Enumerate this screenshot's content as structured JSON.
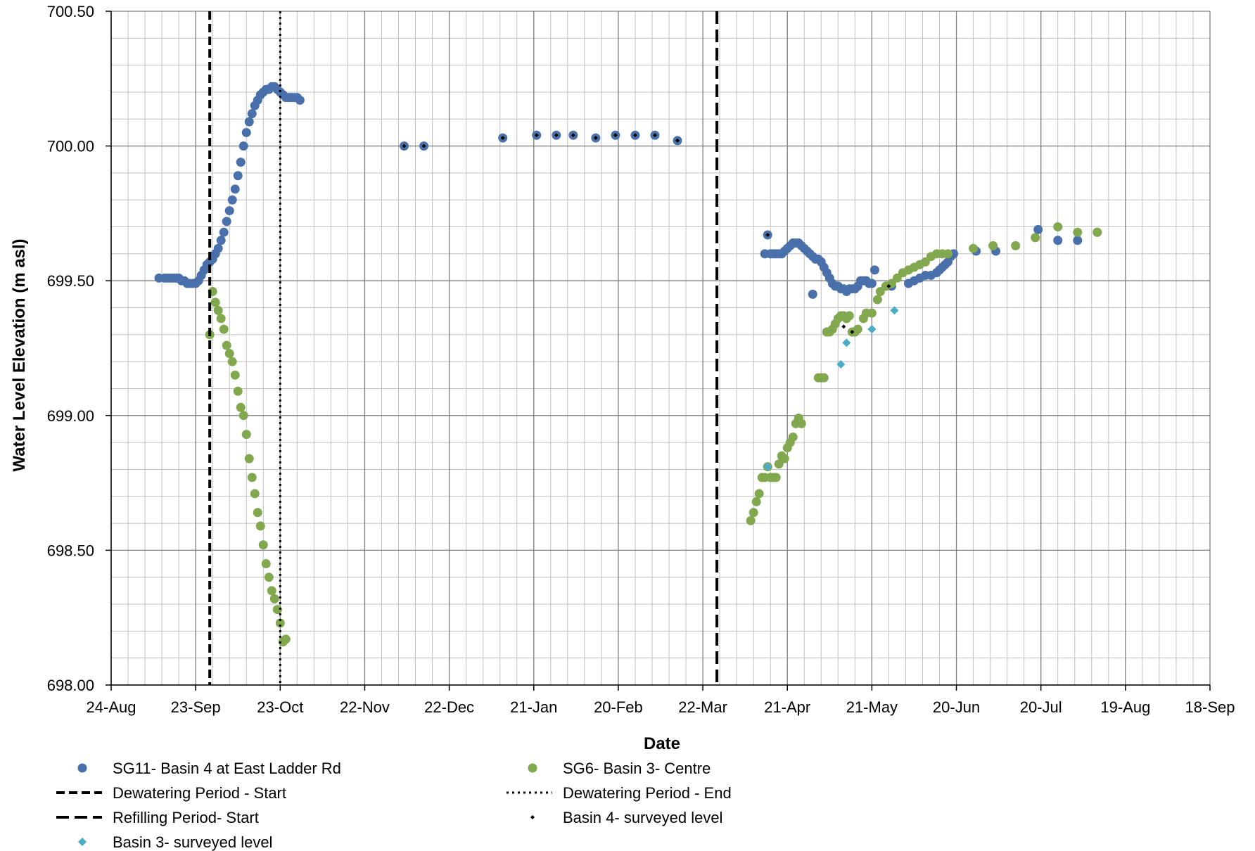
{
  "colors": {
    "sg11": "#4a70ab",
    "sg6": "#82a84f",
    "basin4_surveyed": "#000000",
    "basin3_surveyed": "#4bacc6",
    "grid_major": "#7f7f7f",
    "grid_minor": "#c0c0c0",
    "vline": "#000000"
  },
  "chart_data": {
    "type": "scatter",
    "title": "",
    "xlabel": "Date",
    "ylabel": "Water Level Elevation (m asl)",
    "date_origin": "2012-08-24",
    "xlim_days": [
      0,
      390
    ],
    "ylim": [
      698.0,
      700.5
    ],
    "y_major_step": 0.5,
    "y_minor_step": 0.1,
    "x_major_step_days": 30,
    "x_minor_step_days": 6,
    "x_tick_labels": [
      "24-Aug",
      "23-Sep",
      "23-Oct",
      "22-Nov",
      "22-Dec",
      "21-Jan",
      "20-Feb",
      "22-Mar",
      "21-Apr",
      "21-May",
      "20-Jun",
      "20-Jul",
      "19-Aug",
      "18-Sep"
    ],
    "y_tick_labels": [
      "698.00",
      "698.50",
      "699.00",
      "699.50",
      "700.00",
      "700.50"
    ],
    "grid": true,
    "legend_position": "bottom",
    "vertical_lines": [
      {
        "name": "Dewatering Period - Start",
        "x": 35,
        "style": "dashed"
      },
      {
        "name": "Dewatering Period - End",
        "x": 60,
        "style": "dotted"
      },
      {
        "name": "Refilling Period- Start",
        "x": 215,
        "style": "longdash"
      }
    ],
    "series": [
      {
        "name": "SG11- Basin 4 at East Ladder Rd",
        "marker": "circle",
        "points": [
          [
            17,
            699.51
          ],
          [
            19,
            699.51
          ],
          [
            20,
            699.51
          ],
          [
            21,
            699.51
          ],
          [
            22,
            699.51
          ],
          [
            23,
            699.51
          ],
          [
            24,
            699.51
          ],
          [
            25,
            699.5
          ],
          [
            26,
            699.5
          ],
          [
            27,
            699.49
          ],
          [
            28,
            699.49
          ],
          [
            29,
            699.49
          ],
          [
            30,
            699.49
          ],
          [
            31,
            699.5
          ],
          [
            32,
            699.52
          ],
          [
            33,
            699.54
          ],
          [
            34,
            699.56
          ],
          [
            35,
            699.57
          ],
          [
            36,
            699.58
          ],
          [
            37,
            699.6
          ],
          [
            38,
            699.62
          ],
          [
            39,
            699.65
          ],
          [
            40,
            699.68
          ],
          [
            41,
            699.72
          ],
          [
            42,
            699.76
          ],
          [
            43,
            699.8
          ],
          [
            44,
            699.84
          ],
          [
            45,
            699.89
          ],
          [
            46,
            699.94
          ],
          [
            47,
            700.0
          ],
          [
            48,
            700.05
          ],
          [
            49,
            700.09
          ],
          [
            50,
            700.12
          ],
          [
            51,
            700.15
          ],
          [
            52,
            700.17
          ],
          [
            53,
            700.19
          ],
          [
            54,
            700.2
          ],
          [
            55,
            700.21
          ],
          [
            56,
            700.21
          ],
          [
            57,
            700.22
          ],
          [
            58,
            700.22
          ],
          [
            59,
            700.21
          ],
          [
            60,
            700.2
          ],
          [
            61,
            700.19
          ],
          [
            62,
            700.18
          ],
          [
            63,
            700.18
          ],
          [
            64,
            700.18
          ],
          [
            65,
            700.18
          ],
          [
            66,
            700.18
          ],
          [
            67,
            700.17
          ],
          [
            104,
            700.0
          ],
          [
            111,
            700.0
          ],
          [
            139,
            700.03
          ],
          [
            151,
            700.04
          ],
          [
            158,
            700.04
          ],
          [
            164,
            700.04
          ],
          [
            172,
            700.03
          ],
          [
            179,
            700.04
          ],
          [
            186,
            700.04
          ],
          [
            193,
            700.04
          ],
          [
            201,
            700.02
          ],
          [
            233,
            699.67
          ],
          [
            232,
            699.6
          ],
          [
            234,
            699.6
          ],
          [
            235,
            699.6
          ],
          [
            236,
            699.6
          ],
          [
            237,
            699.6
          ],
          [
            238,
            699.6
          ],
          [
            239,
            699.61
          ],
          [
            240,
            699.62
          ],
          [
            241,
            699.63
          ],
          [
            242,
            699.64
          ],
          [
            243,
            699.64
          ],
          [
            244,
            699.64
          ],
          [
            245,
            699.63
          ],
          [
            246,
            699.62
          ],
          [
            247,
            699.61
          ],
          [
            248,
            699.6
          ],
          [
            249,
            699.59
          ],
          [
            250,
            699.58
          ],
          [
            251,
            699.58
          ],
          [
            252,
            699.57
          ],
          [
            253,
            699.55
          ],
          [
            254,
            699.53
          ],
          [
            255,
            699.51
          ],
          [
            256,
            699.49
          ],
          [
            257,
            699.48
          ],
          [
            258,
            699.48
          ],
          [
            259,
            699.47
          ],
          [
            260,
            699.47
          ],
          [
            261,
            699.46
          ],
          [
            262,
            699.47
          ],
          [
            263,
            699.47
          ],
          [
            264,
            699.47
          ],
          [
            265,
            699.48
          ],
          [
            266,
            699.5
          ],
          [
            267,
            699.5
          ],
          [
            268,
            699.5
          ],
          [
            269,
            699.49
          ],
          [
            270,
            699.49
          ],
          [
            249,
            699.45
          ],
          [
            271,
            699.54
          ],
          [
            275,
            699.48
          ],
          [
            277,
            699.48
          ],
          [
            283,
            699.49
          ],
          [
            285,
            699.5
          ],
          [
            287,
            699.51
          ],
          [
            289,
            699.52
          ],
          [
            291,
            699.52
          ],
          [
            293,
            699.53
          ],
          [
            294,
            699.54
          ],
          [
            295,
            699.55
          ],
          [
            296,
            699.56
          ],
          [
            297,
            699.57
          ],
          [
            298,
            699.59
          ],
          [
            299,
            699.6
          ],
          [
            307,
            699.61
          ],
          [
            314,
            699.61
          ],
          [
            329,
            699.69
          ],
          [
            336,
            699.65
          ],
          [
            343,
            699.65
          ],
          [
            350,
            699.68
          ]
        ]
      },
      {
        "name": "SG6- Basin 3- Centre",
        "marker": "circle",
        "points": [
          [
            35,
            699.3
          ],
          [
            36,
            699.46
          ],
          [
            37,
            699.42
          ],
          [
            38,
            699.39
          ],
          [
            39,
            699.36
          ],
          [
            40,
            699.32
          ],
          [
            41,
            699.26
          ],
          [
            42,
            699.23
          ],
          [
            43,
            699.2
          ],
          [
            44,
            699.15
          ],
          [
            45,
            699.09
          ],
          [
            46,
            699.03
          ],
          [
            47,
            699.0
          ],
          [
            48,
            698.93
          ],
          [
            49,
            698.84
          ],
          [
            50,
            698.77
          ],
          [
            51,
            698.71
          ],
          [
            52,
            698.64
          ],
          [
            53,
            698.59
          ],
          [
            54,
            698.52
          ],
          [
            55,
            698.45
          ],
          [
            56,
            698.4
          ],
          [
            57,
            698.35
          ],
          [
            58,
            698.32
          ],
          [
            59,
            698.28
          ],
          [
            60,
            698.23
          ],
          [
            61,
            698.16
          ],
          [
            62,
            698.17
          ],
          [
            227,
            698.61
          ],
          [
            228,
            698.64
          ],
          [
            229,
            698.68
          ],
          [
            230,
            698.71
          ],
          [
            231,
            698.77
          ],
          [
            232,
            698.77
          ],
          [
            233,
            698.81
          ],
          [
            234,
            698.77
          ],
          [
            235,
            698.77
          ],
          [
            236,
            698.77
          ],
          [
            237,
            698.82
          ],
          [
            238,
            698.85
          ],
          [
            239,
            698.84
          ],
          [
            240,
            698.88
          ],
          [
            241,
            698.9
          ],
          [
            242,
            698.92
          ],
          [
            243,
            698.97
          ],
          [
            244,
            698.99
          ],
          [
            245,
            698.97
          ],
          [
            251,
            699.14
          ],
          [
            252,
            699.14
          ],
          [
            253,
            699.14
          ],
          [
            254,
            699.31
          ],
          [
            255,
            699.31
          ],
          [
            256,
            699.32
          ],
          [
            257,
            699.34
          ],
          [
            258,
            699.36
          ],
          [
            259,
            699.37
          ],
          [
            260,
            699.37
          ],
          [
            261,
            699.36
          ],
          [
            262,
            699.37
          ],
          [
            263,
            699.31
          ],
          [
            264,
            699.31
          ],
          [
            265,
            699.32
          ],
          [
            267,
            699.36
          ],
          [
            268,
            699.38
          ],
          [
            270,
            699.38
          ],
          [
            272,
            699.43
          ],
          [
            273,
            699.46
          ],
          [
            275,
            699.48
          ],
          [
            277,
            699.49
          ],
          [
            279,
            699.51
          ],
          [
            281,
            699.53
          ],
          [
            283,
            699.54
          ],
          [
            285,
            699.55
          ],
          [
            287,
            699.56
          ],
          [
            289,
            699.57
          ],
          [
            291,
            699.59
          ],
          [
            293,
            699.6
          ],
          [
            295,
            699.6
          ],
          [
            297,
            699.6
          ],
          [
            306,
            699.62
          ],
          [
            313,
            699.63
          ],
          [
            321,
            699.63
          ],
          [
            328,
            699.66
          ],
          [
            336,
            699.7
          ],
          [
            343,
            699.68
          ],
          [
            350,
            699.68
          ]
        ]
      },
      {
        "name": "Basin 4- surveyed level",
        "marker": "small-diamond",
        "points": [
          [
            104,
            700.0
          ],
          [
            111,
            700.0
          ],
          [
            139,
            700.03
          ],
          [
            151,
            700.04
          ],
          [
            158,
            700.04
          ],
          [
            164,
            700.04
          ],
          [
            172,
            700.03
          ],
          [
            179,
            700.04
          ],
          [
            186,
            700.04
          ],
          [
            193,
            700.04
          ],
          [
            201,
            700.02
          ],
          [
            233,
            699.67
          ],
          [
            260,
            699.33
          ],
          [
            263,
            699.31
          ],
          [
            276,
            699.48
          ]
        ]
      },
      {
        "name": "Basin 3- surveyed level",
        "marker": "diamond",
        "points": [
          [
            233,
            698.81
          ],
          [
            259,
            699.19
          ],
          [
            261,
            699.27
          ],
          [
            270,
            699.32
          ],
          [
            278,
            699.39
          ]
        ]
      }
    ]
  }
}
